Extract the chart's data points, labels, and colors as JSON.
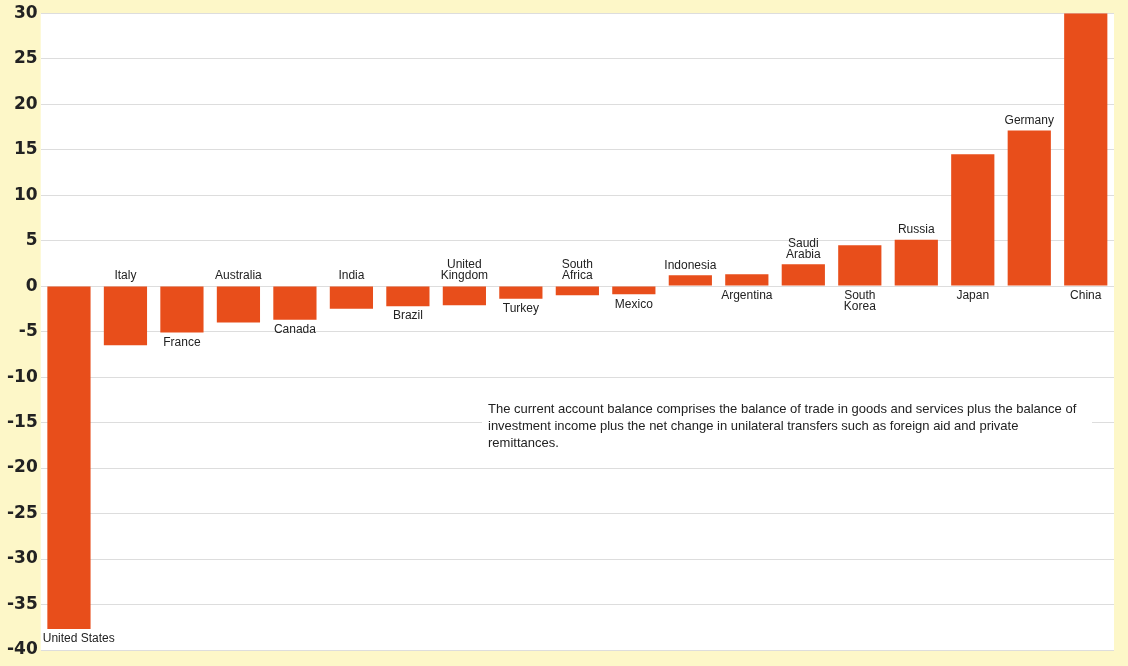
{
  "chart_data": {
    "type": "bar",
    "categories": [
      "United States",
      "Italy",
      "France",
      "Australia",
      "Canada",
      "India",
      "Brazil",
      "United\nKingdom",
      "Turkey",
      "South\nAfrica",
      "Mexico",
      "Indonesia",
      "Argentina",
      "Saudi\nArabia",
      "South\nKorea",
      "Russia",
      "Japan",
      "Germany",
      "China"
    ],
    "values": [
      -37.7,
      -6.5,
      -5.1,
      -4.0,
      -3.7,
      -2.5,
      -2.2,
      -2.1,
      -1.4,
      -1.0,
      -0.9,
      1.2,
      1.3,
      2.4,
      4.5,
      5.1,
      14.5,
      17.1,
      30.0
    ],
    "color": "#e84e1b",
    "ylim": [
      -40,
      30
    ],
    "yticks": [
      -40,
      -35,
      -30,
      -25,
      -20,
      -15,
      -10,
      -5,
      0,
      5,
      10,
      15,
      20,
      25,
      30
    ],
    "grid": "y",
    "tick_labels": "y",
    "legend": false,
    "annotations": [
      "The current account balance comprises the balance of trade in goods and services plus the balance of investment income plus the net change in unilateral transfers such as foreign aid and private remittances."
    ]
  }
}
